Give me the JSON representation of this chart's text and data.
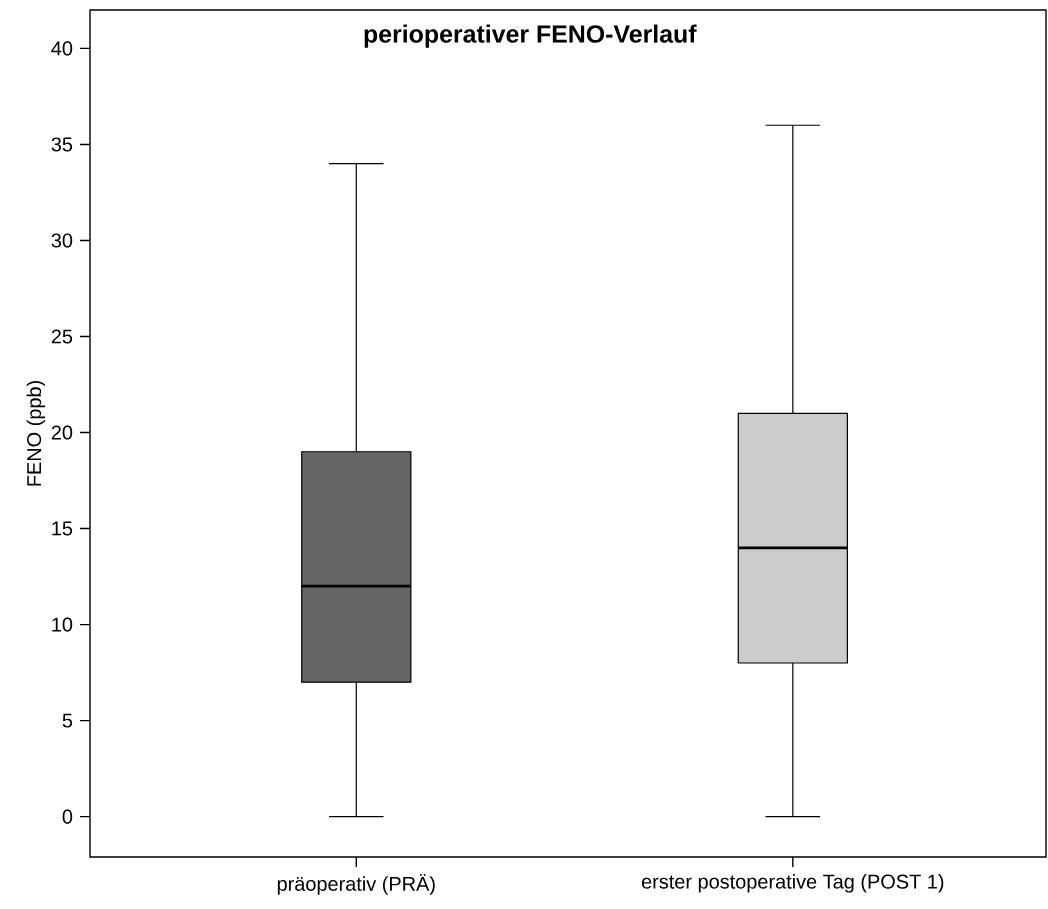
{
  "chart_data": {
    "type": "box",
    "title": "perioperativer FENO-Verlauf",
    "ylabel": "FENO (ppb)",
    "categories": [
      "präoperativ (PRÄ)",
      "erster postoperative Tag (POST 1)"
    ],
    "colors": [
      "#666666",
      "#cccccc"
    ],
    "boxes": [
      {
        "low": 0,
        "q1": 7,
        "median": 12,
        "q3": 19,
        "high": 34
      },
      {
        "low": 0,
        "q1": 8,
        "median": 14,
        "q3": 21,
        "high": 36
      }
    ],
    "ylim": [
      -2.1,
      42
    ],
    "yticks": [
      0,
      5,
      10,
      15,
      20,
      25,
      30,
      35,
      40
    ]
  }
}
